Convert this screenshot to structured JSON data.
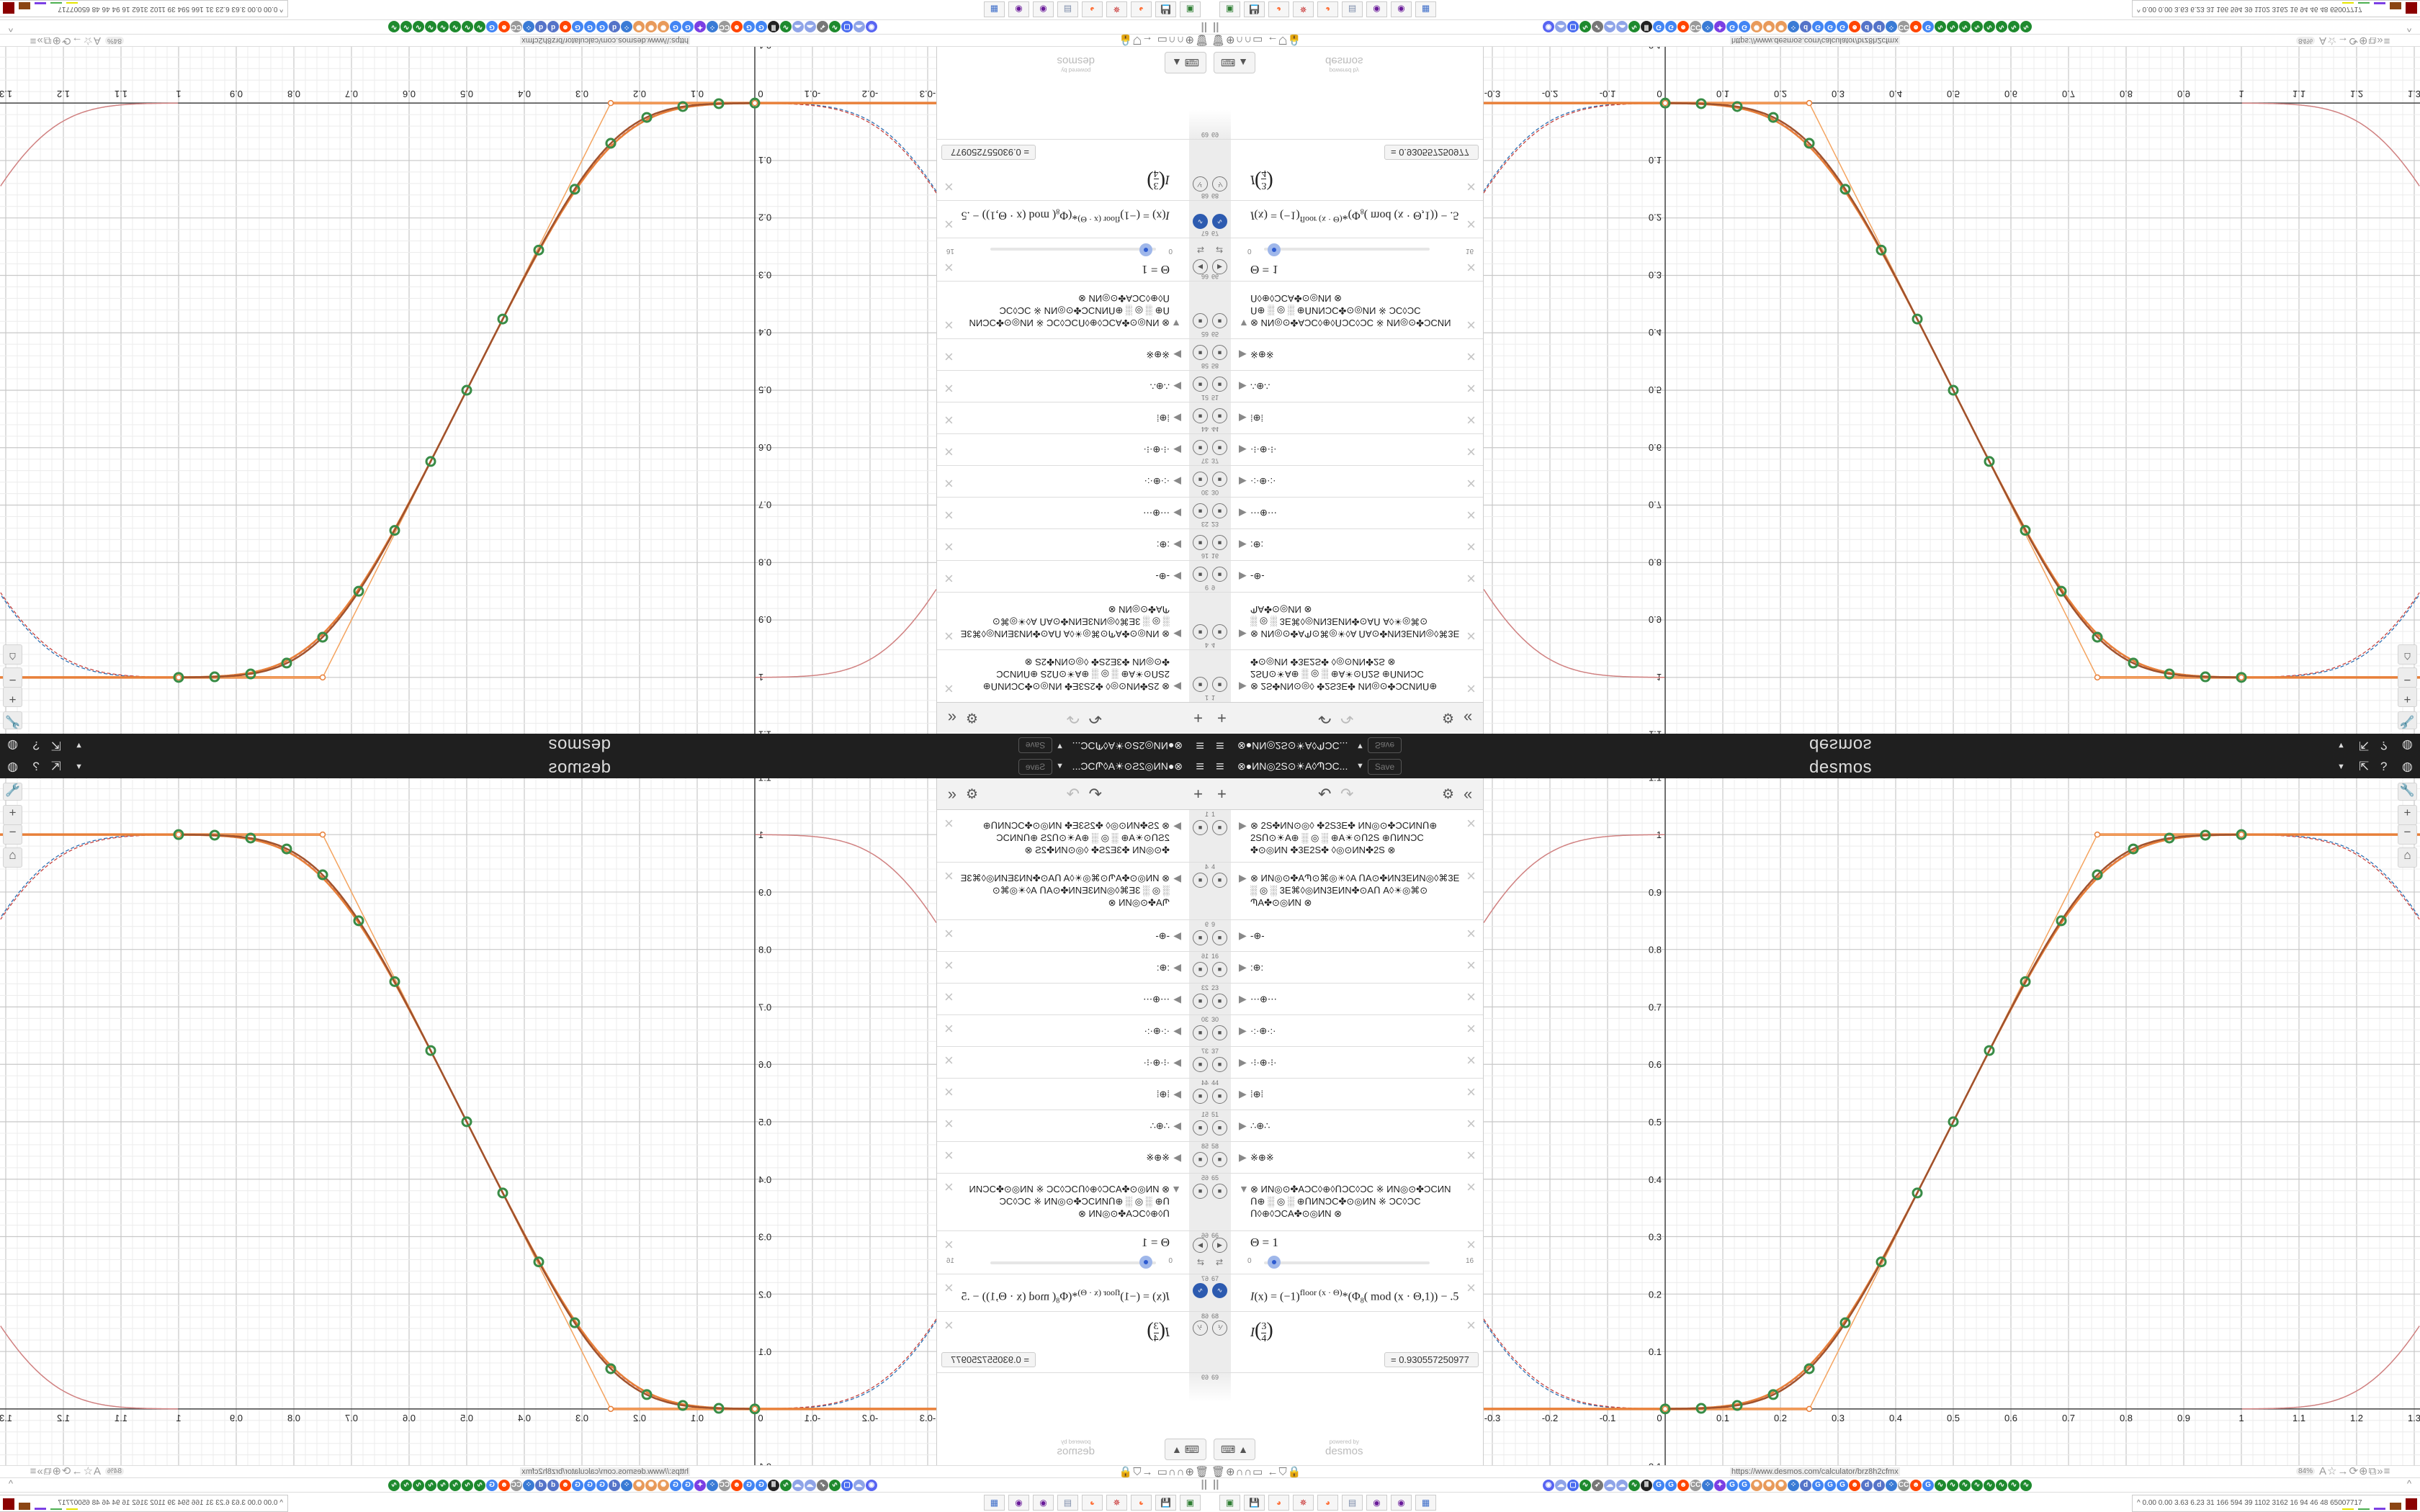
{
  "header": {
    "menu_icon": "hamburger-icon",
    "graph_title": "⊗●ИN◎2S⊙☀A◊ՊƆC...",
    "title_caret": "▼",
    "save_label": "Save",
    "logo": "desmos",
    "right_icons": [
      "caret-down-icon",
      "share-icon",
      "help-icon",
      "globe-icon"
    ]
  },
  "toolbar": {
    "add": "+",
    "undo": "↶",
    "redo": "↷",
    "settings": "⚙",
    "collapse": "«"
  },
  "expressions": [
    {
      "num": "1",
      "kind": "folder",
      "lines": [
        "⊗ 2S✤ИN⊙◎◊ ✤2S3E✤ ИN◎⊙✤ƆCИNՈ⊕",
        "2SՈ⊙☀A⊕ ░ ◎ ░ ⊕A☀⊙Ո2S ⊕ՈИNƆC",
        "✤⊙◎ИN ✤3E2S✤ ◊◎⊙ИN✤2S ⊗"
      ]
    },
    {
      "num": "4",
      "kind": "folder",
      "lines": [
        "⊗ ИN◎⊙✤AՊ⊙⌘◎☀◊A ՈA⊙✤ИN3EИN◎◊⌘3E",
        "░ ◎ ░ 3E⌘◊◎ИN3EИN✤⊙AՈ A◊☀◎⌘⊙",
        "ՊA✤⊙◎ИN ⊗"
      ]
    },
    {
      "num": "9",
      "kind": "folder",
      "lines": [
        "-⊕-"
      ]
    },
    {
      "num": "16",
      "kind": "folder",
      "lines": [
        ":⊕:"
      ]
    },
    {
      "num": "23",
      "kind": "folder",
      "lines": [
        "⋯⊕⋯"
      ]
    },
    {
      "num": "30",
      "kind": "folder",
      "lines": [
        "·:·⊕·:·"
      ]
    },
    {
      "num": "37",
      "kind": "folder",
      "lines": [
        "·⁝·⊕·⁝·"
      ]
    },
    {
      "num": "44",
      "kind": "folder",
      "lines": [
        "⁞⊕⁞"
      ]
    },
    {
      "num": "51",
      "kind": "folder",
      "lines": [
        "∴⊕∴"
      ]
    },
    {
      "num": "58",
      "kind": "folder",
      "lines": [
        "※⊕※"
      ]
    },
    {
      "num": "65",
      "kind": "folder-open",
      "lines": [
        "⊗ ИN◎⊙✤AƆC◊⊕◊ՈƆC◊ƆC ※ ИN◎⊙✤ƆCИN",
        "Ո⊕ ░ ◎ ░ ⊕ՈИNƆC✤⊙◎ИN ※ ƆC◊ƆC",
        "Ո◊⊕◊ƆCA✤⊙◎ИN ⊗"
      ]
    }
  ],
  "slider_row": {
    "num": "66",
    "lhs": "Θ",
    "eq": "=",
    "value": "1",
    "min": "0",
    "max": "16",
    "fraction": 0.0625
  },
  "function_row": {
    "num": "67",
    "f": "I",
    "arg": "(x)",
    "eq": "= (−1)",
    "sup": "floor (x · Θ)",
    "mid": "*(Φ",
    "sub": "8",
    "rest": "( mod (x · Θ,1)) − .5"
  },
  "eval_row": {
    "num": "68",
    "f": "I",
    "num_top": "3",
    "num_bot": "4",
    "result": "= 0.930557250977"
  },
  "empty_row": {
    "num": "69"
  },
  "footer": {
    "keyboard": "⌨ ▲",
    "powered": "powered by",
    "logo": "desmos"
  },
  "graph_buttons": {
    "settings": "wrench-icon",
    "zoom_in": "+",
    "zoom_out": "−",
    "home": "⌂"
  },
  "browser": {
    "left_icons": "🗑⊕∩∩▭ ←⛉🔒",
    "url": "https://www.desmos.com/calculator/brz8h2cfmx",
    "zoom": "84%",
    "right_icons": "A☆→⟳⊕⧉»≡",
    "pause": "||",
    "collapse": "^"
  },
  "bookmarks": [
    {
      "g": "◉",
      "c": "#5865f2"
    },
    {
      "g": "☁",
      "c": "#8fa4e8"
    },
    {
      "g": "▢",
      "c": "#4a6cf0"
    },
    {
      "g": "∿",
      "c": "#1e8a2e"
    },
    {
      "g": "➶",
      "c": "#777"
    },
    {
      "g": "☁",
      "c": "#8fa4e8"
    },
    {
      "g": "☁",
      "c": "#8fa4e8"
    },
    {
      "g": "∿",
      "c": "#1e8a2e"
    },
    {
      "g": "Ⅲ",
      "c": "#222"
    },
    {
      "g": "G",
      "c": "#4285f4"
    },
    {
      "g": "G",
      "c": "#4285f4"
    },
    {
      "g": "☻",
      "c": "#ff4500"
    },
    {
      "g": "CC",
      "c": "#999"
    },
    {
      "g": "⁘",
      "c": "#3a7bd5"
    },
    {
      "g": "✦",
      "c": "#7b3fe4"
    },
    {
      "g": "G",
      "c": "#4285f4"
    },
    {
      "g": "G",
      "c": "#4285f4"
    },
    {
      "g": "✺",
      "c": "#e89a5a"
    },
    {
      "g": "✺",
      "c": "#e89a5a"
    },
    {
      "g": "✺",
      "c": "#e89a5a"
    },
    {
      "g": "⁘",
      "c": "#3a7bd5"
    },
    {
      "g": "d",
      "c": "#5573c8"
    },
    {
      "g": "G",
      "c": "#4285f4"
    },
    {
      "g": "G",
      "c": "#4285f4"
    },
    {
      "g": "G",
      "c": "#4285f4"
    },
    {
      "g": "☻",
      "c": "#ff4500"
    },
    {
      "g": "d",
      "c": "#5573c8"
    },
    {
      "g": "d",
      "c": "#5573c8"
    },
    {
      "g": "⁘",
      "c": "#3a7bd5"
    },
    {
      "g": "CC",
      "c": "#999"
    },
    {
      "g": "☻",
      "c": "#ff4500"
    },
    {
      "g": "G",
      "c": "#4285f4"
    },
    {
      "g": "∿",
      "c": "#1e8a2e"
    },
    {
      "g": "∿",
      "c": "#1e8a2e"
    },
    {
      "g": "∿",
      "c": "#1e8a2e"
    },
    {
      "g": "∿",
      "c": "#1e8a2e"
    },
    {
      "g": "∿",
      "c": "#1e8a2e"
    },
    {
      "g": "∿",
      "c": "#1e8a2e"
    },
    {
      "g": "∿",
      "c": "#1e8a2e"
    },
    {
      "g": "∿",
      "c": "#1e8a2e"
    }
  ],
  "taskbar": {
    "apps": [
      {
        "g": "▣",
        "c": "#2e7d32"
      },
      {
        "g": "💾",
        "c": "#1a3a8a"
      },
      {
        "g": "◕",
        "c": "#ff7139"
      },
      {
        "g": "✵",
        "c": "#c62828"
      },
      {
        "g": "◕",
        "c": "#ff7139"
      },
      {
        "g": "▤",
        "c": "#7a8aa8"
      },
      {
        "g": "◉",
        "c": "#6a1b9a"
      },
      {
        "g": "◉",
        "c": "#6a1b9a"
      },
      {
        "g": "▦",
        "c": "#3a6bc8"
      }
    ],
    "tray_caret": "^",
    "stats": "0.00 0.00 3.63 6.23  31  166  594  39  1102 3162  16  94  46  48  65007717"
  },
  "chart_data": {
    "type": "line",
    "xlim": [
      -0.315,
      1.31
    ],
    "ylim": [
      -0.098,
      1.098
    ],
    "grid": true,
    "x_ticks": [
      "-0.3",
      "-0.2",
      "-0.1",
      "0",
      "0.1",
      "0.2",
      "0.3",
      "0.4",
      "0.5",
      "0.6",
      "0.7",
      "0.8",
      "0.9",
      "1",
      "1.1",
      "1.2",
      "1.3"
    ],
    "y_ticks": [
      "-0.1",
      "0.1",
      "0.2",
      "0.3",
      "0.4",
      "0.5",
      "0.6",
      "0.7",
      "0.8",
      "0.9",
      "1",
      "1.1"
    ],
    "colors": {
      "curve": "#a0522d",
      "curve2": "#e8803a",
      "linear": "#f4a460",
      "points": "#388c46",
      "dashed_blue": "#2d70b3",
      "dashed_red": "#c74440",
      "periodic": "#d08080"
    },
    "linear_knots": {
      "x": [
        0,
        0.25,
        0.75,
        1
      ],
      "y": [
        0,
        0,
        1,
        1
      ]
    },
    "points": {
      "x": [
        0,
        0.0625,
        0.125,
        0.1875,
        0.25,
        0.3125,
        0.375,
        0.4375,
        0.5,
        0.5625,
        0.625,
        0.6875,
        0.75,
        0.8125,
        0.875,
        0.9375,
        1
      ],
      "y": [
        0,
        0.001,
        0.006,
        0.025,
        0.07,
        0.15,
        0.256,
        0.376,
        0.5,
        0.624,
        0.744,
        0.85,
        0.93,
        0.975,
        0.994,
        0.999,
        1
      ]
    }
  }
}
